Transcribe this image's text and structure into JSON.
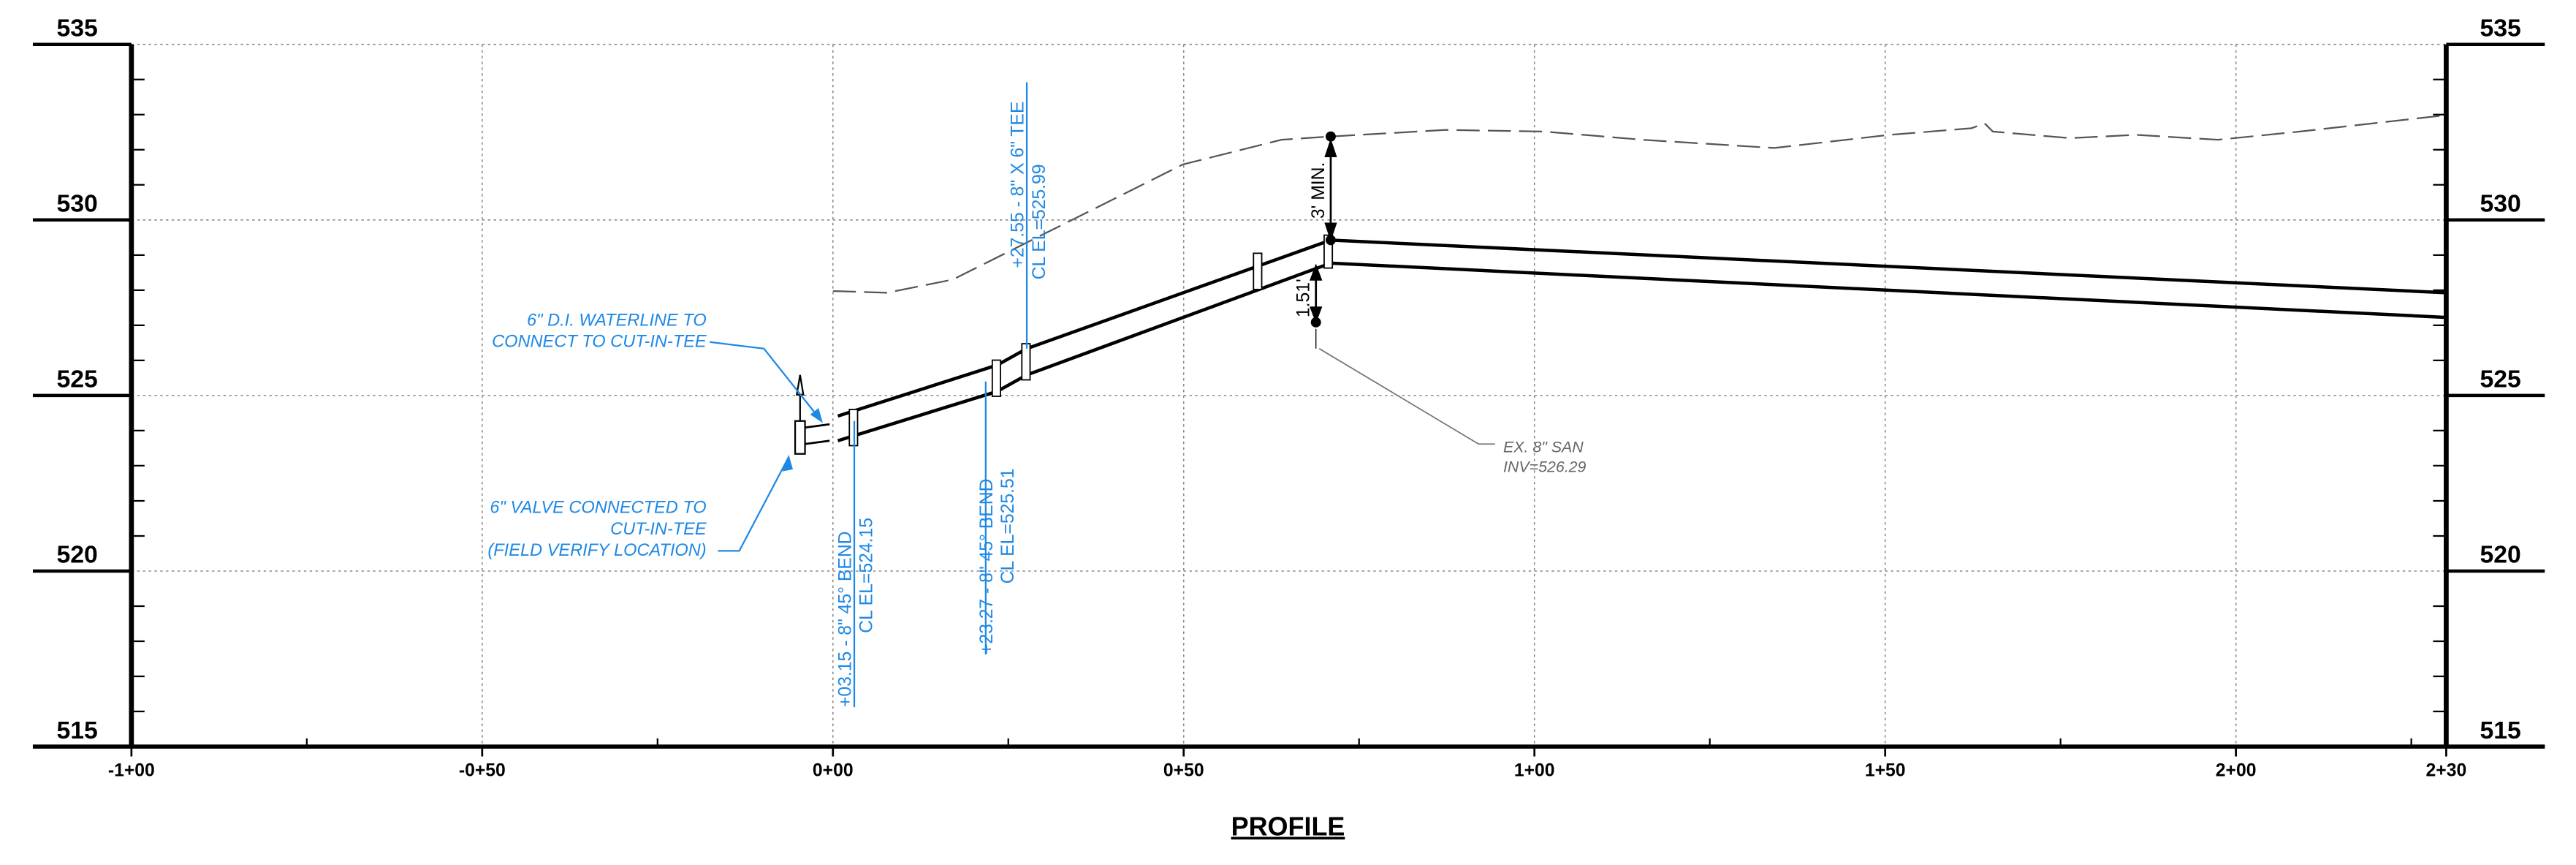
{
  "title": "PROFILE",
  "elevation_labels": [
    "535",
    "530",
    "525",
    "520",
    "515"
  ],
  "station_labels": [
    "-1+00",
    "-0+50",
    "0+00",
    "0+50",
    "1+00",
    "1+50",
    "2+00",
    "2+30"
  ],
  "annotations": {
    "waterline": [
      "6\" D.I. WATERLINE TO",
      "CONNECT TO CUT-IN-TEE"
    ],
    "valve": [
      "6\" VALVE CONNECTED TO",
      "CUT-IN-TEE",
      "(FIELD VERIFY LOCATION)"
    ],
    "bend_1": [
      "+03.15 - 8\" 45° BEND",
      "CL EL=524.15"
    ],
    "bend_2": [
      "+23.27 - 8\" 45° BEND",
      "CL EL=525.51"
    ],
    "tee": [
      "+27.55 - 8\" X 6\" TEE",
      "CL EL=525.99"
    ],
    "cover": "3' MIN.",
    "clearance": "1.51'",
    "sanitary": [
      "EX. 8\" SAN",
      "INV=526.29"
    ]
  }
}
